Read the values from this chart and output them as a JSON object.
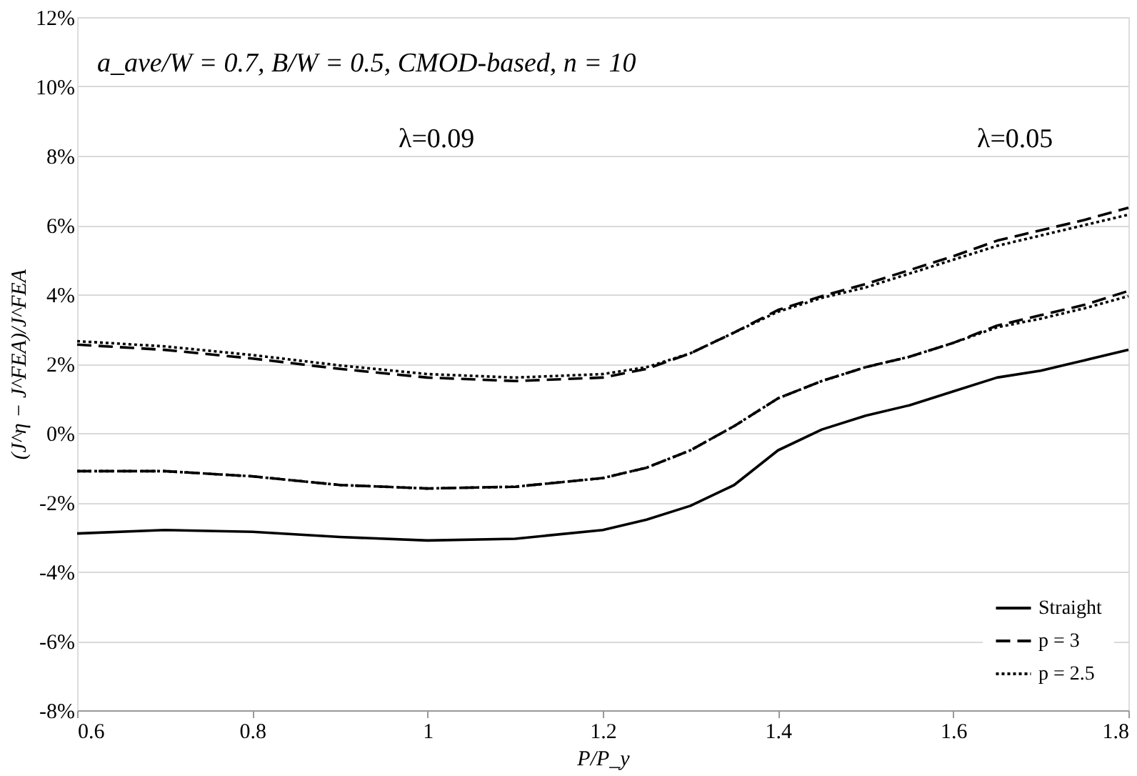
{
  "chart_data": {
    "type": "line",
    "xlabel": "P/P_y",
    "ylabel": "(J^η − J^FEA)/J^FEA",
    "annotations": [
      "a_ave/W = 0.7, B/W = 0.5, CMOD-based, n = 10",
      "λ=0.09",
      "λ=0.05"
    ],
    "x": [
      0.6,
      0.7,
      0.8,
      0.9,
      1.0,
      1.1,
      1.2,
      1.25,
      1.3,
      1.35,
      1.4,
      1.45,
      1.5,
      1.55,
      1.6,
      1.65,
      1.7,
      1.75,
      1.8
    ],
    "series": [
      {
        "name": "Straight",
        "color": "#000000",
        "line_style": "solid",
        "values": [
          -2.9,
          -2.8,
          -2.85,
          -3.0,
          -3.1,
          -3.05,
          -2.8,
          -2.5,
          -2.1,
          -1.5,
          -0.5,
          0.1,
          0.5,
          0.8,
          1.2,
          1.6,
          1.8,
          2.1,
          2.4
        ]
      },
      {
        "name": "p = 3",
        "color": "#000000",
        "line_style": "dashed",
        "values": [
          2.55,
          2.4,
          2.15,
          1.85,
          1.6,
          1.5,
          1.6,
          1.85,
          2.3,
          2.9,
          3.55,
          3.95,
          4.3,
          4.7,
          5.1,
          5.55,
          5.85,
          6.15,
          6.5
        ]
      },
      {
        "name": "p = 2.5",
        "color": "#000000",
        "line_style": "dotted",
        "values": [
          2.65,
          2.5,
          2.25,
          1.95,
          1.7,
          1.6,
          1.7,
          1.9,
          2.3,
          2.9,
          3.5,
          3.9,
          4.2,
          4.6,
          5.0,
          5.4,
          5.7,
          6.0,
          6.3
        ]
      },
      {
        "color": "#000000",
        "line_style": "dashed",
        "values": [
          -1.1,
          -1.1,
          -1.25,
          -1.5,
          -1.6,
          -1.55,
          -1.3,
          -1.0,
          -0.5,
          0.2,
          1.0,
          1.5,
          1.9,
          2.2,
          2.6,
          3.1,
          3.4,
          3.7,
          4.1
        ]
      },
      {
        "color": "#000000",
        "line_style": "dotted",
        "values": [
          -1.1,
          -1.1,
          -1.25,
          -1.5,
          -1.6,
          -1.55,
          -1.3,
          -1.0,
          -0.5,
          0.2,
          1.0,
          1.5,
          1.9,
          2.2,
          2.6,
          3.05,
          3.3,
          3.6,
          3.95
        ]
      }
    ],
    "xlim": [
      0.6,
      1.8
    ],
    "xticks": [
      0.6,
      0.8,
      1,
      1.2,
      1.4,
      1.6,
      1.8
    ],
    "ylim": [
      -8,
      12
    ],
    "yticks": [
      {
        "value": -8,
        "label": "-8%"
      },
      {
        "value": -6,
        "label": "-6%"
      },
      {
        "value": -4,
        "label": "-4%"
      },
      {
        "value": -2,
        "label": "-2%"
      },
      {
        "value": 0,
        "label": "0%"
      },
      {
        "value": 2,
        "label": "2%"
      },
      {
        "value": 4,
        "label": "4%"
      },
      {
        "value": 6,
        "label": "6%"
      },
      {
        "value": 8,
        "label": "8%"
      },
      {
        "value": 10,
        "label": "10%"
      },
      {
        "value": 12,
        "label": "12%"
      }
    ],
    "grid": "y",
    "legend": "bottom right",
    "marker": "none"
  }
}
